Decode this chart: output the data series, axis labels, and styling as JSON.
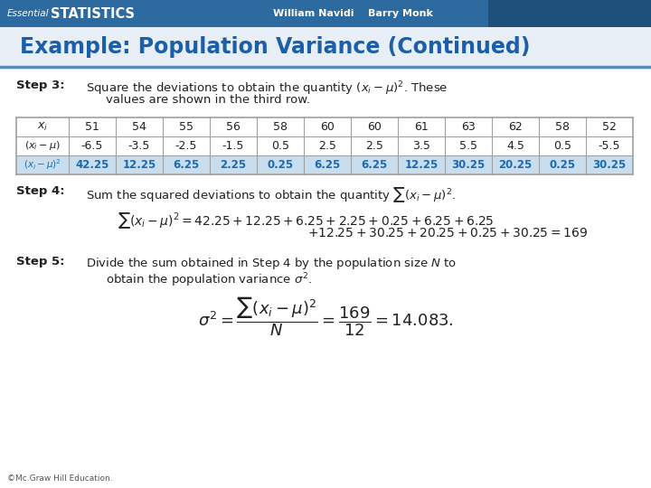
{
  "header_bg": "#2D6A9F",
  "header_text_left1": "Essential",
  "header_text_left2": "STATISTICS",
  "header_text_center": "William Navidi    Barry Monk",
  "title_text": "Example: Population Variance (Continued)",
  "title_bg": "#E8EEF6",
  "title_color": "#1A5FA8",
  "title_underline_color": "#4A90C4",
  "table_header": [
    "51",
    "54",
    "55",
    "56",
    "58",
    "60",
    "60",
    "61",
    "63",
    "62",
    "58",
    "52"
  ],
  "table_row2": [
    "-6.5",
    "-3.5",
    "-2.5",
    "-1.5",
    "0.5",
    "2.5",
    "2.5",
    "3.5",
    "5.5",
    "4.5",
    "0.5",
    "-5.5"
  ],
  "table_row3": [
    "42.25",
    "12.25",
    "6.25",
    "2.25",
    "0.25",
    "6.25",
    "6.25",
    "12.25",
    "30.25",
    "20.25",
    "0.25",
    "30.25"
  ],
  "table_row3_color": "#1A6AAF",
  "table_row3_bg": "#C8DEEF",
  "table_border_color": "#A0A0A0",
  "footer_text": "©Mc.Graw Hill Education.",
  "bg_color": "#FFFFFF",
  "text_color": "#231F20",
  "blue_color": "#1A6AAF",
  "header_white": "#FFFFFF",
  "step_label_color": "#231F20"
}
